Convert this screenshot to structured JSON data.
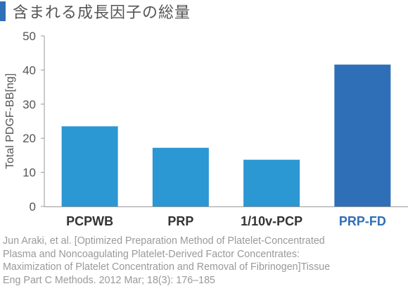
{
  "title": "含まれる成長因子の総量",
  "colors": {
    "accent": "#2f6fb7",
    "bar_default": "#2b97d3",
    "bar_highlight": "#2f6fb7",
    "label_default": "#333333",
    "label_highlight": "#2f6fb7"
  },
  "chart_data": {
    "type": "bar",
    "categories": [
      "PCPWB",
      "PRP",
      "1/10v-PCP",
      "PRP-FD"
    ],
    "values": [
      23.5,
      17.2,
      13.7,
      41.6
    ],
    "highlight": [
      "PRP-FD"
    ],
    "xlabel": "",
    "ylabel": "Total PDGF-BB[ng]",
    "ylim": [
      0,
      50
    ],
    "yticks": [
      0,
      10,
      20,
      30,
      40,
      50
    ],
    "grid": false
  },
  "footnote": {
    "lines": [
      "Jun Araki, et al. [Optimized Preparation Method of Platelet-Concentrated",
      "Plasma and Noncoagulating Platelet-Derived Factor Concentrates:",
      "Maximization of Platelet Concentration and Removal of Fibrinogen]Tissue",
      "Eng Part C Methods. 2012 Mar; 18(3): 176–185"
    ]
  }
}
